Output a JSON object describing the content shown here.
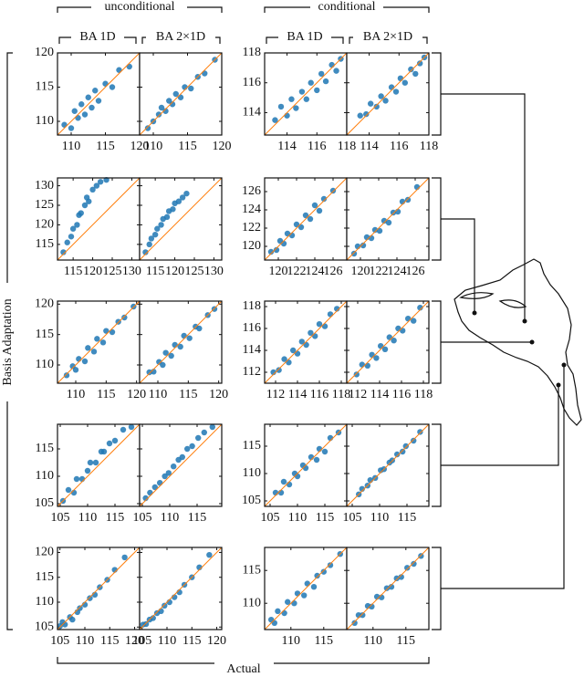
{
  "headers": {
    "group_labels": [
      "unconditional",
      "conditional"
    ],
    "column_labels": [
      "BA 1D",
      "BA 2×1D",
      "BA 1D",
      "BA 2×1D"
    ],
    "y_label": "Basis Adaptation",
    "x_label": "Actual"
  },
  "chart_data": [
    {
      "type": "scatter",
      "color": "#1f77b4",
      "identity_color": "#ff7f0e",
      "xlim": [
        108,
        120
      ],
      "ylim": [
        108,
        120
      ],
      "xticks": [
        110,
        115,
        120
      ],
      "yticks": [
        110,
        115,
        120
      ],
      "x": [
        109,
        110,
        110.5,
        111,
        111.5,
        112,
        112.5,
        113,
        113.5,
        114,
        115,
        116,
        117,
        118.5
      ],
      "values": [
        109.5,
        109,
        111.5,
        110.5,
        112.5,
        111,
        113.5,
        112,
        114.5,
        113,
        115.5,
        115,
        117.5,
        118
      ]
    },
    {
      "type": "scatter",
      "color": "#1f77b4",
      "identity_color": "#ff7f0e",
      "xlim": [
        108,
        120
      ],
      "ylim": [
        108,
        120
      ],
      "xticks": [
        110,
        115,
        120
      ],
      "yticks": [
        110,
        115,
        120
      ],
      "x": [
        109.2,
        110,
        110.8,
        111.2,
        111.8,
        112.3,
        112.8,
        113.3,
        114,
        114.6,
        115.5,
        116.5,
        117.5,
        119
      ],
      "values": [
        109,
        110,
        111,
        112,
        111.5,
        113,
        112.5,
        114,
        113.5,
        115,
        114.8,
        116.5,
        117,
        119
      ]
    },
    {
      "type": "scatter",
      "color": "#1f77b4",
      "identity_color": "#ff7f0e",
      "xlim": [
        112.5,
        118
      ],
      "ylim": [
        112.5,
        118
      ],
      "xticks": [
        114,
        116,
        118
      ],
      "yticks": [
        114,
        116,
        118
      ],
      "x": [
        113.2,
        113.6,
        114,
        114.3,
        114.6,
        115,
        115.3,
        115.6,
        116,
        116.3,
        116.6,
        117,
        117.3,
        117.6
      ],
      "values": [
        113.5,
        114.4,
        113.8,
        114.9,
        114.3,
        115.4,
        114.9,
        116,
        115.5,
        116.6,
        116.1,
        117.2,
        116.8,
        117.6
      ]
    },
    {
      "type": "scatter",
      "color": "#1f77b4",
      "identity_color": "#ff7f0e",
      "xlim": [
        112.5,
        118
      ],
      "ylim": [
        112.5,
        118
      ],
      "xticks": [
        114,
        116,
        118
      ],
      "yticks": [
        114,
        116,
        118
      ],
      "x": [
        113.4,
        113.8,
        114.1,
        114.5,
        114.8,
        115.1,
        115.5,
        115.8,
        116.1,
        116.4,
        116.8,
        117.1,
        117.4,
        117.7
      ],
      "values": [
        113.8,
        113.9,
        114.6,
        114.4,
        115.1,
        114.8,
        115.7,
        115.4,
        116.3,
        116,
        116.9,
        116.6,
        117.3,
        117.7
      ]
    },
    {
      "type": "scatter",
      "color": "#1f77b4",
      "identity_color": "#ff7f0e",
      "xlim": [
        111,
        132
      ],
      "ylim": [
        111,
        132
      ],
      "xticks": [
        115,
        120,
        125,
        130
      ],
      "yticks": [
        115,
        120,
        125,
        130
      ],
      "x": [
        112.5,
        113.5,
        114.5,
        115,
        116,
        116.5,
        117,
        118,
        118.5,
        119,
        120,
        121,
        122,
        123.5
      ],
      "values": [
        113,
        115.5,
        117,
        119,
        120,
        122.5,
        123,
        125,
        127,
        126,
        129,
        130,
        131,
        131.5
      ]
    },
    {
      "type": "scatter",
      "color": "#1f77b4",
      "identity_color": "#ff7f0e",
      "xlim": [
        111,
        132
      ],
      "ylim": [
        111,
        132
      ],
      "xticks": [
        115,
        120,
        125,
        130
      ],
      "yticks": [
        115,
        120,
        125,
        130
      ],
      "x": [
        112.5,
        113.5,
        114,
        115,
        115.5,
        116.5,
        117,
        118,
        118.5,
        119.5,
        120,
        121,
        122,
        123
      ],
      "values": [
        113,
        115,
        116.5,
        117.5,
        119,
        120,
        121.5,
        122,
        123.5,
        124,
        125.5,
        126,
        127,
        128
      ]
    },
    {
      "type": "scatter",
      "color": "#1f77b4",
      "identity_color": "#ff7f0e",
      "xlim": [
        118.5,
        127.5
      ],
      "ylim": [
        118.5,
        127.5
      ],
      "xticks": [
        120,
        122,
        124,
        126
      ],
      "yticks": [
        120,
        122,
        124,
        126
      ],
      "x": [
        119.2,
        119.8,
        120.2,
        120.6,
        121,
        121.5,
        122,
        122.5,
        123,
        123.5,
        124,
        124.5,
        125,
        126
      ],
      "values": [
        119.4,
        119.6,
        120.6,
        120.3,
        121.4,
        121.2,
        122.4,
        122.1,
        123.4,
        123,
        124.5,
        123.9,
        125.2,
        126.1
      ]
    },
    {
      "type": "scatter",
      "color": "#1f77b4",
      "identity_color": "#ff7f0e",
      "xlim": [
        118.5,
        127.5
      ],
      "ylim": [
        118.5,
        127.5
      ],
      "xticks": [
        120,
        122,
        124,
        126
      ],
      "yticks": [
        120,
        122,
        124,
        126
      ],
      "x": [
        119.3,
        119.7,
        120.3,
        120.7,
        121.2,
        121.6,
        122.1,
        122.6,
        123.1,
        123.6,
        124.1,
        124.6,
        125.2,
        126.2
      ],
      "values": [
        119.2,
        120,
        120.1,
        121,
        120.9,
        121.8,
        121.7,
        122.8,
        122.6,
        123.7,
        123.8,
        124.9,
        125.1,
        126.5
      ]
    },
    {
      "type": "scatter",
      "color": "#1f77b4",
      "identity_color": "#ff7f0e",
      "xlim": [
        107,
        120.5
      ],
      "ylim": [
        107,
        120.5
      ],
      "xticks": [
        110,
        115,
        120
      ],
      "yticks": [
        110,
        115,
        120
      ],
      "x": [
        108.5,
        109.5,
        110,
        110.5,
        111.5,
        112,
        113,
        113.5,
        114.5,
        115,
        116,
        117,
        118,
        119.5
      ],
      "values": [
        108.3,
        109.8,
        109.2,
        111,
        110.6,
        112.8,
        112.2,
        114.3,
        113.7,
        115.6,
        115.4,
        117.1,
        117.8,
        119.6
      ]
    },
    {
      "type": "scatter",
      "color": "#1f77b4",
      "identity_color": "#ff7f0e",
      "xlim": [
        107,
        120.5
      ],
      "ylim": [
        107,
        120.5
      ],
      "xticks": [
        110,
        115,
        120
      ],
      "yticks": [
        110,
        115,
        120
      ],
      "x": [
        108.6,
        109.3,
        110.2,
        110.8,
        111.3,
        112.2,
        112.8,
        113.7,
        114.3,
        115.2,
        116.2,
        116.8,
        118.2,
        119.3
      ],
      "values": [
        108.8,
        108.9,
        110.5,
        110,
        112,
        111.5,
        113.3,
        113,
        114.8,
        114.4,
        116.3,
        116,
        118.2,
        119.2
      ]
    },
    {
      "type": "scatter",
      "color": "#1f77b4",
      "identity_color": "#ff7f0e",
      "xlim": [
        111,
        118.5
      ],
      "ylim": [
        111,
        118.5
      ],
      "xticks": [
        112,
        114,
        116,
        118
      ],
      "yticks": [
        112,
        114,
        116,
        118
      ],
      "x": [
        111.8,
        112.3,
        112.8,
        113.2,
        113.6,
        114,
        114.4,
        114.8,
        115.2,
        115.6,
        116,
        116.5,
        117,
        117.6
      ],
      "values": [
        112,
        112.2,
        113.2,
        112.9,
        114,
        113.7,
        114.8,
        114.5,
        115.6,
        115.3,
        116.4,
        116.2,
        117.3,
        117.8
      ]
    },
    {
      "type": "scatter",
      "color": "#1f77b4",
      "identity_color": "#ff7f0e",
      "xlim": [
        111,
        118.5
      ],
      "ylim": [
        111,
        118.5
      ],
      "xticks": [
        112,
        114,
        116,
        118
      ],
      "yticks": [
        112,
        114,
        116,
        118
      ],
      "x": [
        111.9,
        112.4,
        112.9,
        113.3,
        113.7,
        114.1,
        114.5,
        114.9,
        115.3,
        115.7,
        116.1,
        116.6,
        117.1,
        117.7
      ],
      "values": [
        111.8,
        112.7,
        112.6,
        113.6,
        113.3,
        114.4,
        114.1,
        115.2,
        114.9,
        116,
        115.8,
        116.9,
        116.7,
        117.9
      ]
    },
    {
      "type": "scatter",
      "color": "#1f77b4",
      "identity_color": "#ff7f0e",
      "xlim": [
        104.5,
        119.5
      ],
      "ylim": [
        104.5,
        119.5
      ],
      "xticks": [
        105,
        110,
        115
      ],
      "yticks": [
        105,
        110,
        115
      ],
      "x": [
        105.5,
        106.5,
        107.5,
        108,
        109,
        110,
        110.5,
        111.5,
        112.5,
        113,
        114,
        115,
        116.5,
        118
      ],
      "values": [
        105.5,
        107.5,
        107,
        109.5,
        109.5,
        111,
        112.5,
        112.5,
        114.5,
        114.5,
        116,
        116.5,
        118.5,
        119
      ]
    },
    {
      "type": "scatter",
      "color": "#1f77b4",
      "identity_color": "#ff7f0e",
      "xlim": [
        104.5,
        119.5
      ],
      "ylim": [
        104.5,
        119.5
      ],
      "xticks": [
        105,
        110,
        115
      ],
      "yticks": [
        105,
        110,
        115
      ],
      "x": [
        105.6,
        106.4,
        107.3,
        108.2,
        109.1,
        109.8,
        110.7,
        111.6,
        112.3,
        113.2,
        114.1,
        115.2,
        116.3,
        117.8
      ],
      "values": [
        106,
        107,
        108,
        108.8,
        110,
        110.6,
        111.8,
        113,
        113.5,
        115,
        115.5,
        117,
        118,
        119
      ]
    },
    {
      "type": "scatter",
      "color": "#1f77b4",
      "identity_color": "#ff7f0e",
      "xlim": [
        104,
        119
      ],
      "ylim": [
        104,
        119
      ],
      "xticks": [
        105,
        110,
        115
      ],
      "yticks": [
        105,
        110,
        115
      ],
      "x": [
        106,
        107,
        107.5,
        108.5,
        109.5,
        110,
        111,
        111.5,
        112.5,
        113.5,
        114,
        115,
        116,
        117.5
      ],
      "values": [
        106.5,
        106.5,
        108.5,
        108,
        110,
        109.5,
        111.5,
        111,
        113,
        112.5,
        114.5,
        114,
        116.5,
        117.5
      ]
    },
    {
      "type": "scatter",
      "color": "#1f77b4",
      "identity_color": "#ff7f0e",
      "xlim": [
        104,
        119
      ],
      "ylim": [
        104,
        119
      ],
      "xticks": [
        105,
        110,
        115
      ],
      "yticks": [
        105,
        110,
        115
      ],
      "x": [
        106.2,
        106.8,
        107.8,
        108.3,
        109.2,
        110.2,
        110.8,
        111.8,
        112.3,
        113.2,
        114.2,
        114.8,
        116.2,
        117.4
      ],
      "values": [
        106.2,
        107.2,
        107.8,
        108.8,
        109.2,
        110.6,
        110.8,
        112,
        112.4,
        113.5,
        114,
        115,
        116,
        117.6
      ]
    },
    {
      "type": "scatter",
      "color": "#1f77b4",
      "identity_color": "#ff7f0e",
      "xlim": [
        104.5,
        121
      ],
      "ylim": [
        104.5,
        121
      ],
      "xticks": [
        105,
        110,
        115,
        120
      ],
      "yticks": [
        105,
        110,
        115,
        120
      ],
      "x": [
        105,
        105.5,
        106,
        107,
        107.5,
        108.5,
        109,
        110,
        111,
        112,
        113,
        114.5,
        116,
        118
      ],
      "values": [
        105.2,
        106,
        105.5,
        107,
        106.5,
        108,
        108.8,
        109.5,
        110.8,
        111.5,
        113,
        114.5,
        116.5,
        119
      ]
    },
    {
      "type": "scatter",
      "color": "#1f77b4",
      "identity_color": "#ff7f0e",
      "xlim": [
        104.5,
        121
      ],
      "ylim": [
        104.5,
        121
      ],
      "xticks": [
        105,
        110,
        115,
        120
      ],
      "yticks": [
        105,
        110,
        115,
        120
      ],
      "x": [
        105.2,
        105.8,
        106.5,
        107.2,
        108,
        108.8,
        109.5,
        110.5,
        111.5,
        112.5,
        113.5,
        115,
        116.5,
        118.5
      ],
      "values": [
        105.5,
        105.6,
        106.5,
        106.8,
        107.8,
        108.2,
        109.3,
        110,
        111,
        112,
        113.5,
        115,
        117,
        119.5
      ]
    },
    {
      "type": "scatter",
      "color": "#1f77b4",
      "identity_color": "#ff7f0e",
      "xlim": [
        106,
        118.5
      ],
      "ylim": [
        106,
        118.5
      ],
      "xticks": [
        110,
        115
      ],
      "yticks": [
        110,
        115
      ],
      "x": [
        107,
        107.5,
        108,
        109,
        109.5,
        110.5,
        111,
        112,
        112.5,
        113.5,
        114,
        115,
        116,
        117.5
      ],
      "values": [
        107.5,
        107,
        108.8,
        108.5,
        110.2,
        110,
        111.5,
        111.2,
        113,
        112.5,
        114.2,
        114.8,
        115.8,
        117.5
      ]
    },
    {
      "type": "scatter",
      "color": "#1f77b4",
      "identity_color": "#ff7f0e",
      "xlim": [
        106,
        118.5
      ],
      "ylim": [
        106,
        118.5
      ],
      "xticks": [
        110,
        115
      ],
      "yticks": [
        110,
        115
      ],
      "x": [
        107.2,
        107.8,
        108.4,
        109.2,
        109.8,
        110.6,
        111.3,
        112.1,
        112.8,
        113.6,
        114.3,
        115.2,
        116.2,
        117.3
      ],
      "values": [
        107,
        108.2,
        108.2,
        109.6,
        109.5,
        111,
        110.9,
        112.3,
        112.5,
        113.8,
        114,
        115.4,
        116,
        117.2
      ]
    }
  ]
}
